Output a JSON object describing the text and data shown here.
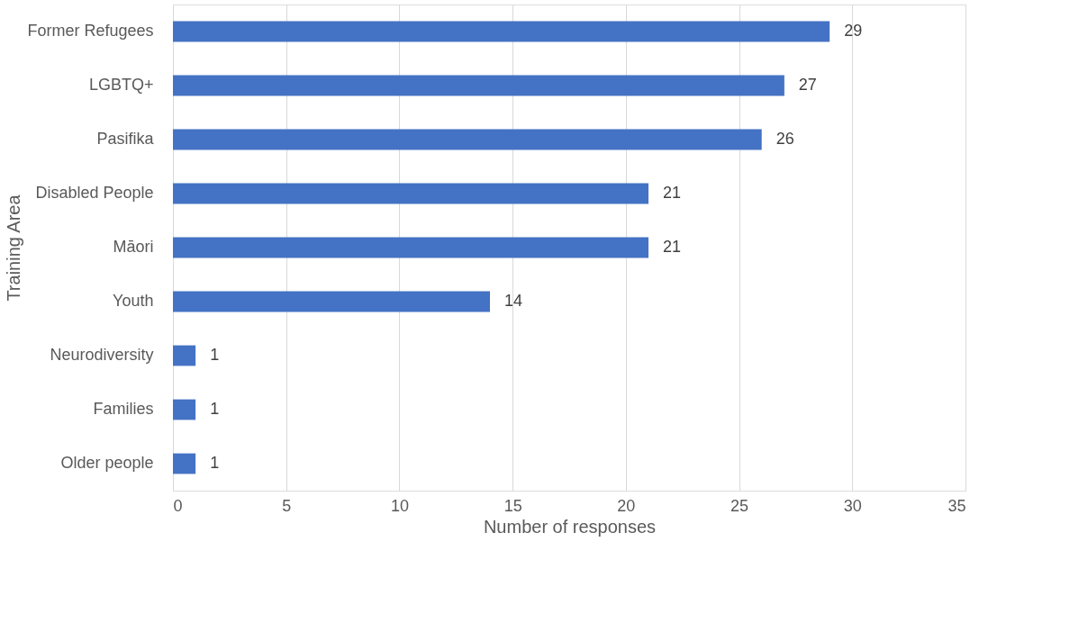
{
  "chart_data": {
    "type": "bar",
    "orientation": "horizontal",
    "xlabel": "Number of responses",
    "ylabel": "Training Area",
    "categories": [
      "Former Refugees",
      "LGBTQ+",
      "Pasifika",
      "Disabled People",
      "Māori",
      "Youth",
      "Neurodiversity",
      "Families",
      "Older people"
    ],
    "values": [
      29,
      27,
      26,
      21,
      21,
      14,
      1,
      1,
      1
    ],
    "color": "#4472c4",
    "xlim": [
      0,
      35
    ],
    "xticks": [
      0,
      5,
      10,
      15,
      20,
      25,
      30,
      35
    ],
    "grid": "x",
    "data_labels": true
  }
}
